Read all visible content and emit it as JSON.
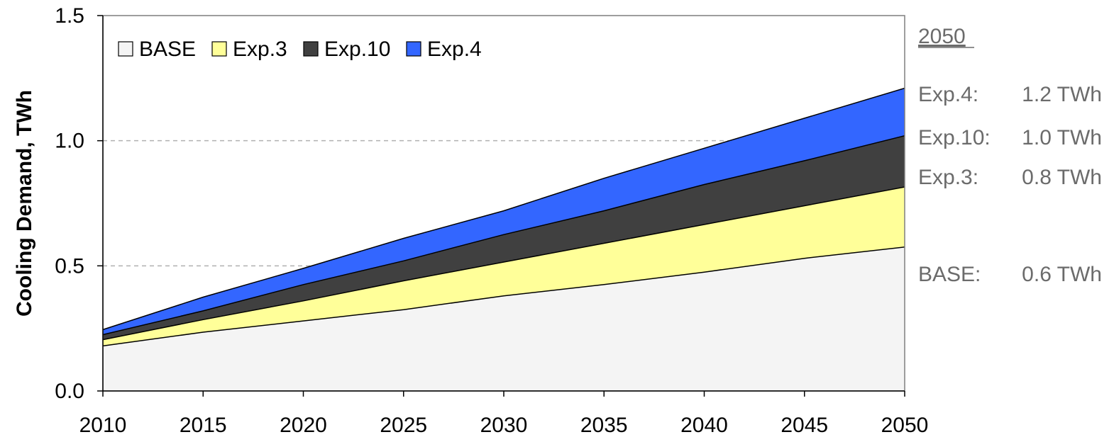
{
  "chart_data": {
    "type": "area",
    "stacked": true,
    "x": [
      2010,
      2015,
      2020,
      2025,
      2030,
      2035,
      2040,
      2045,
      2050
    ],
    "xlim": [
      2010,
      2050
    ],
    "ylim": [
      0,
      1.5
    ],
    "y_ticks": [
      "0.0",
      "0.5",
      "1.0",
      "1.5"
    ],
    "x_ticks": [
      "2010",
      "2015",
      "2020",
      "2025",
      "2030",
      "2035",
      "2040",
      "2045",
      "2050"
    ],
    "ylabel": "Cooling Demand, TWh",
    "xlabel": "",
    "grid": "horizontal dashed at 0.5 and 1.0",
    "legend_position": "top-left",
    "series": [
      {
        "name": "BASE",
        "color": "#f4f4f4",
        "values": [
          0.18,
          0.235,
          0.28,
          0.325,
          0.38,
          0.425,
          0.475,
          0.53,
          0.575
        ]
      },
      {
        "name": "Exp.3",
        "color": "#ffff99",
        "values": [
          0.205,
          0.285,
          0.36,
          0.44,
          0.515,
          0.59,
          0.665,
          0.74,
          0.815
        ]
      },
      {
        "name": "Exp.10",
        "color": "#404040",
        "values": [
          0.225,
          0.32,
          0.425,
          0.52,
          0.625,
          0.72,
          0.825,
          0.92,
          1.02
        ]
      },
      {
        "name": "Exp.4",
        "color": "#3366ff",
        "values": [
          0.245,
          0.375,
          0.49,
          0.61,
          0.72,
          0.85,
          0.97,
          1.09,
          1.21
        ]
      }
    ],
    "annotations": {
      "heading": "2050",
      "items": [
        {
          "label": "Exp.4:",
          "value": "1.2 TWh"
        },
        {
          "label": "Exp.10:",
          "value": "1.0 TWh"
        },
        {
          "label": "Exp.3:",
          "value": "0.8 TWh"
        },
        {
          "label": "BASE:",
          "value": "0.6 TWh"
        }
      ]
    }
  }
}
